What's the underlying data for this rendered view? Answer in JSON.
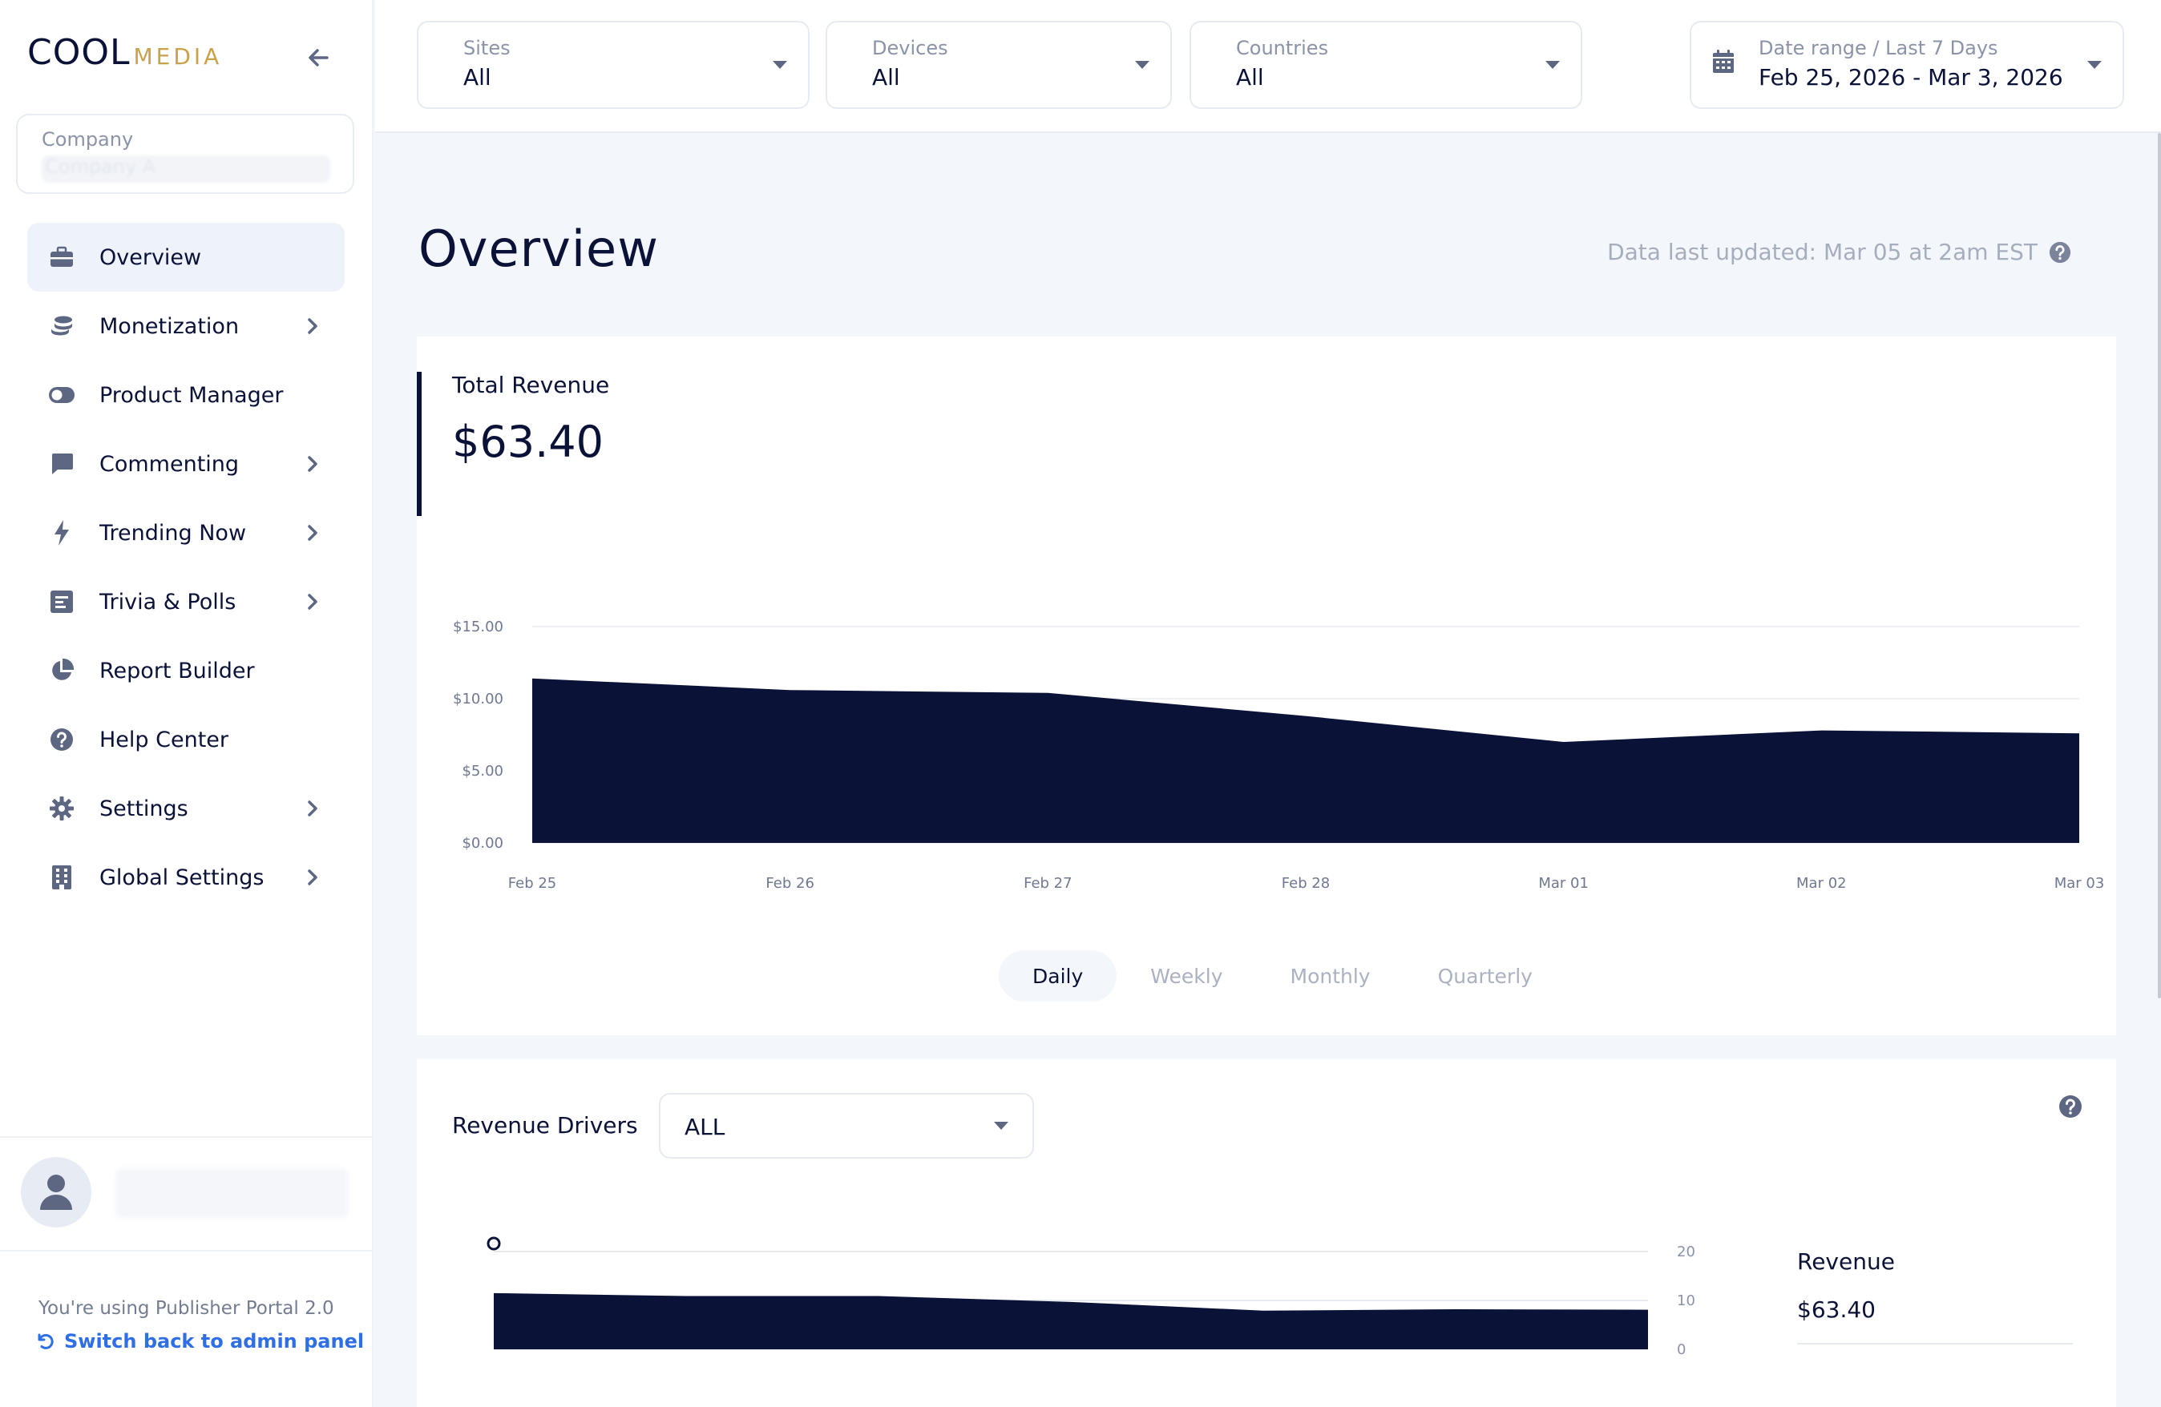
{
  "brand": {
    "cool": "COOL",
    "media": "MEDIA"
  },
  "company": {
    "label": "Company",
    "value": "Company A"
  },
  "nav": [
    {
      "label": "Overview",
      "icon": "briefcase-icon",
      "active": true,
      "chevron": false
    },
    {
      "label": "Monetization",
      "icon": "coins-icon",
      "active": false,
      "chevron": true
    },
    {
      "label": "Product Manager",
      "icon": "toggle-icon",
      "active": false,
      "chevron": false
    },
    {
      "label": "Commenting",
      "icon": "comment-icon",
      "active": false,
      "chevron": true
    },
    {
      "label": "Trending Now",
      "icon": "bolt-icon",
      "active": false,
      "chevron": true
    },
    {
      "label": "Trivia & Polls",
      "icon": "poll-icon",
      "active": false,
      "chevron": true
    },
    {
      "label": "Report Builder",
      "icon": "pie-chart-icon",
      "active": false,
      "chevron": false
    },
    {
      "label": "Help Center",
      "icon": "question-circle-icon",
      "active": false,
      "chevron": false
    },
    {
      "label": "Settings",
      "icon": "gear-icon",
      "active": false,
      "chevron": true
    },
    {
      "label": "Global Settings",
      "icon": "building-icon",
      "active": false,
      "chevron": true
    }
  ],
  "footer": {
    "portal_note": "You're using Publisher Portal 2.0",
    "switch_link": "Switch back to admin panel"
  },
  "filters": {
    "sites": {
      "label": "Sites",
      "value": "All"
    },
    "devices": {
      "label": "Devices",
      "value": "All"
    },
    "countries": {
      "label": "Countries",
      "value": "All"
    },
    "date": {
      "label": "Date range / Last 7 Days",
      "value": "Feb 25, 2026 - Mar 3, 2026"
    }
  },
  "page": {
    "title": "Overview",
    "updated": "Data last updated: Mar 05 at 2am EST"
  },
  "revenue_card": {
    "label": "Total Revenue",
    "value": "$63.40",
    "periods": [
      "Daily",
      "Weekly",
      "Monthly",
      "Quarterly"
    ],
    "active_period": "Daily"
  },
  "drivers_card": {
    "label": "Revenue Drivers",
    "select_value": "ALL",
    "side_label": "Revenue",
    "side_value": "$63.40"
  },
  "colors": {
    "navy": "#0b1238",
    "accent_blue": "#2e6ee6",
    "gold": "#c9a24a"
  },
  "chart_data": [
    {
      "type": "area",
      "categories": [
        "Feb 25",
        "Feb 26",
        "Feb 27",
        "Feb 28",
        "Mar 01",
        "Mar 02",
        "Mar 03"
      ],
      "values": [
        11.4,
        10.6,
        10.4,
        8.8,
        7.0,
        7.8,
        7.6
      ],
      "yticks": [
        "$0.00",
        "$5.00",
        "$10.00",
        "$15.00"
      ],
      "ylim": [
        0,
        15
      ],
      "grid": true
    },
    {
      "type": "area",
      "values": [
        11.5,
        10.9,
        10.9,
        9.7,
        7.9,
        8.2,
        8.1
      ],
      "yticks": [
        "0",
        "10",
        "20"
      ],
      "ylim": [
        0,
        20
      ],
      "grid": true
    }
  ]
}
